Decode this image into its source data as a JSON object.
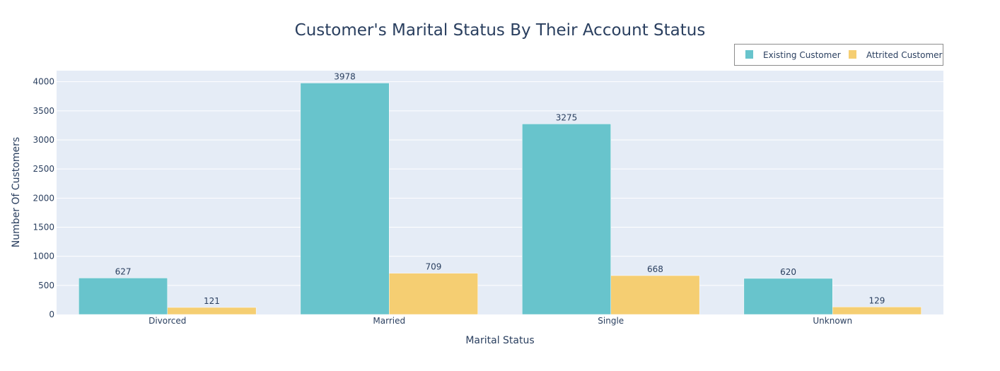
{
  "chart_data": {
    "type": "bar",
    "title": "Customer's Marital Status By Their Account Status",
    "xlabel": "Marital Status",
    "ylabel": "Number Of Customers",
    "categories": [
      "Divorced",
      "Married",
      "Single",
      "Unknown"
    ],
    "series": [
      {
        "name": "Existing Customer",
        "color": "#68c4cc",
        "values": [
          627,
          3978,
          3275,
          620
        ]
      },
      {
        "name": "Attrited Customer",
        "color": "#f5ce72",
        "values": [
          121,
          709,
          668,
          129
        ]
      }
    ],
    "ylim": [
      0,
      4190
    ],
    "yticks": [
      0,
      500,
      1000,
      1500,
      2000,
      2500,
      3000,
      3500,
      4000
    ],
    "grid": true,
    "legend_position": "top-right",
    "plot_background": "#e5ecf6"
  }
}
